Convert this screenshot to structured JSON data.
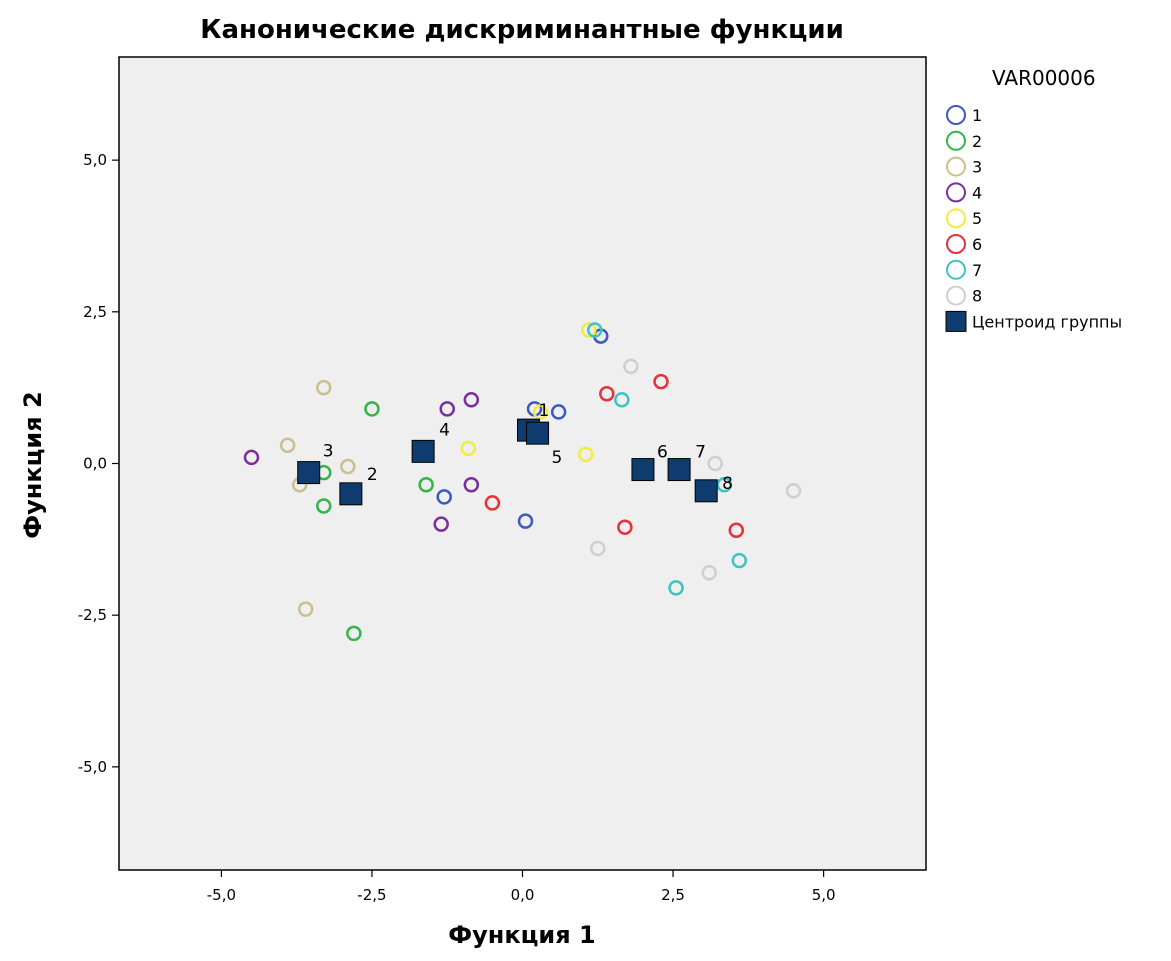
{
  "chart_data": {
    "type": "scatter",
    "title": "Канонические дискриминантные функции",
    "xlabel": "Функция 1",
    "ylabel": "Функция 2",
    "xlim": [
      -6.7,
      6.7
    ],
    "ylim": [
      -6.7,
      6.7
    ],
    "xticks": [
      -5.0,
      -2.5,
      0.0,
      2.5,
      5.0
    ],
    "yticks": [
      -5.0,
      -2.5,
      0.0,
      2.5,
      5.0
    ],
    "xtick_labels": [
      "-5,0",
      "-2,5",
      "0,0",
      "2,5",
      "5,0"
    ],
    "ytick_labels": [
      "-5,0",
      "-2,5",
      "0,0",
      "2,5",
      "5,0"
    ],
    "grid": false,
    "plot_background": "#efefef",
    "legend_title": "VAR00006",
    "legend_position": "right",
    "series": [
      {
        "name": "1",
        "color": "#3c5bbd",
        "points": [
          [
            0.2,
            0.9
          ],
          [
            0.6,
            0.85
          ],
          [
            1.3,
            2.1
          ],
          [
            -1.3,
            -0.55
          ],
          [
            0.05,
            -0.95
          ]
        ]
      },
      {
        "name": "2",
        "color": "#35b44a",
        "points": [
          [
            -2.5,
            0.9
          ],
          [
            -3.3,
            -0.15
          ],
          [
            -3.3,
            -0.7
          ],
          [
            -1.6,
            -0.35
          ],
          [
            -2.8,
            -2.8
          ]
        ]
      },
      {
        "name": "3",
        "color": "#cbbf8f",
        "points": [
          [
            -3.3,
            1.25
          ],
          [
            -3.9,
            0.3
          ],
          [
            -2.9,
            -0.05
          ],
          [
            -3.7,
            -0.35
          ],
          [
            -3.6,
            -2.4
          ]
        ]
      },
      {
        "name": "4",
        "color": "#7b2f9e",
        "points": [
          [
            -4.5,
            0.1
          ],
          [
            -1.25,
            0.9
          ],
          [
            -0.85,
            1.05
          ],
          [
            -0.85,
            -0.35
          ],
          [
            -1.35,
            -1.0
          ]
        ]
      },
      {
        "name": "5",
        "color": "#f3ec3f",
        "points": [
          [
            -0.9,
            0.25
          ],
          [
            0.3,
            0.85
          ],
          [
            1.05,
            0.15
          ],
          [
            1.1,
            2.2
          ],
          [
            -0.5,
            -0.65
          ]
        ]
      },
      {
        "name": "6",
        "color": "#e8303a",
        "points": [
          [
            2.3,
            1.35
          ],
          [
            1.4,
            1.15
          ],
          [
            1.7,
            -1.05
          ],
          [
            3.55,
            -1.1
          ],
          [
            -0.5,
            -0.65
          ]
        ]
      },
      {
        "name": "7",
        "color": "#3cc3c4",
        "points": [
          [
            1.2,
            2.2
          ],
          [
            1.65,
            1.05
          ],
          [
            3.35,
            -0.35
          ],
          [
            3.6,
            -1.6
          ],
          [
            2.55,
            -2.05
          ]
        ]
      },
      {
        "name": "8",
        "color": "#cfcfcf",
        "points": [
          [
            1.8,
            1.6
          ],
          [
            3.2,
            0.0
          ],
          [
            4.5,
            -0.45
          ],
          [
            1.25,
            -1.4
          ],
          [
            3.1,
            -1.8
          ]
        ]
      }
    ],
    "centroids": {
      "name": "Центроид группы",
      "color": "#0f3c6e",
      "points": [
        {
          "label": "1",
          "x": 0.1,
          "y": 0.55
        },
        {
          "label": "2",
          "x": -2.85,
          "y": -0.5
        },
        {
          "label": "3",
          "x": -3.55,
          "y": -0.15
        },
        {
          "label": "4",
          "x": -1.65,
          "y": 0.2
        },
        {
          "label": "5",
          "x": 0.25,
          "y": 0.5
        },
        {
          "label": "6",
          "x": 2.0,
          "y": -0.1
        },
        {
          "label": "7",
          "x": 2.6,
          "y": -0.1
        },
        {
          "label": "8",
          "x": 3.05,
          "y": -0.45
        }
      ]
    }
  }
}
